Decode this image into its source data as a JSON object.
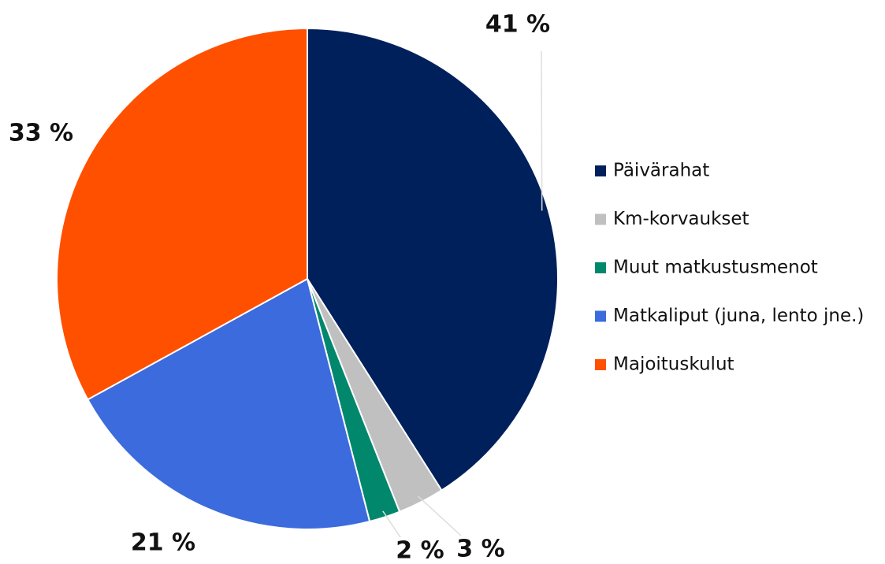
{
  "chart_data": {
    "type": "pie",
    "categories": [
      "Päivärahat",
      "Km-korvaukset",
      "Muut matkustusmenot",
      "Matkaliput (juna, lento jne.)",
      "Majoituskulut"
    ],
    "values": [
      41,
      3,
      2,
      21,
      33
    ],
    "value_labels": [
      "41 %",
      "3 %",
      "2 %",
      "21 %",
      "33 %"
    ],
    "colors": [
      "#00205b",
      "#c0c0c0",
      "#00876c",
      "#3b6bdc",
      "#ff5000"
    ],
    "legend": "right"
  }
}
